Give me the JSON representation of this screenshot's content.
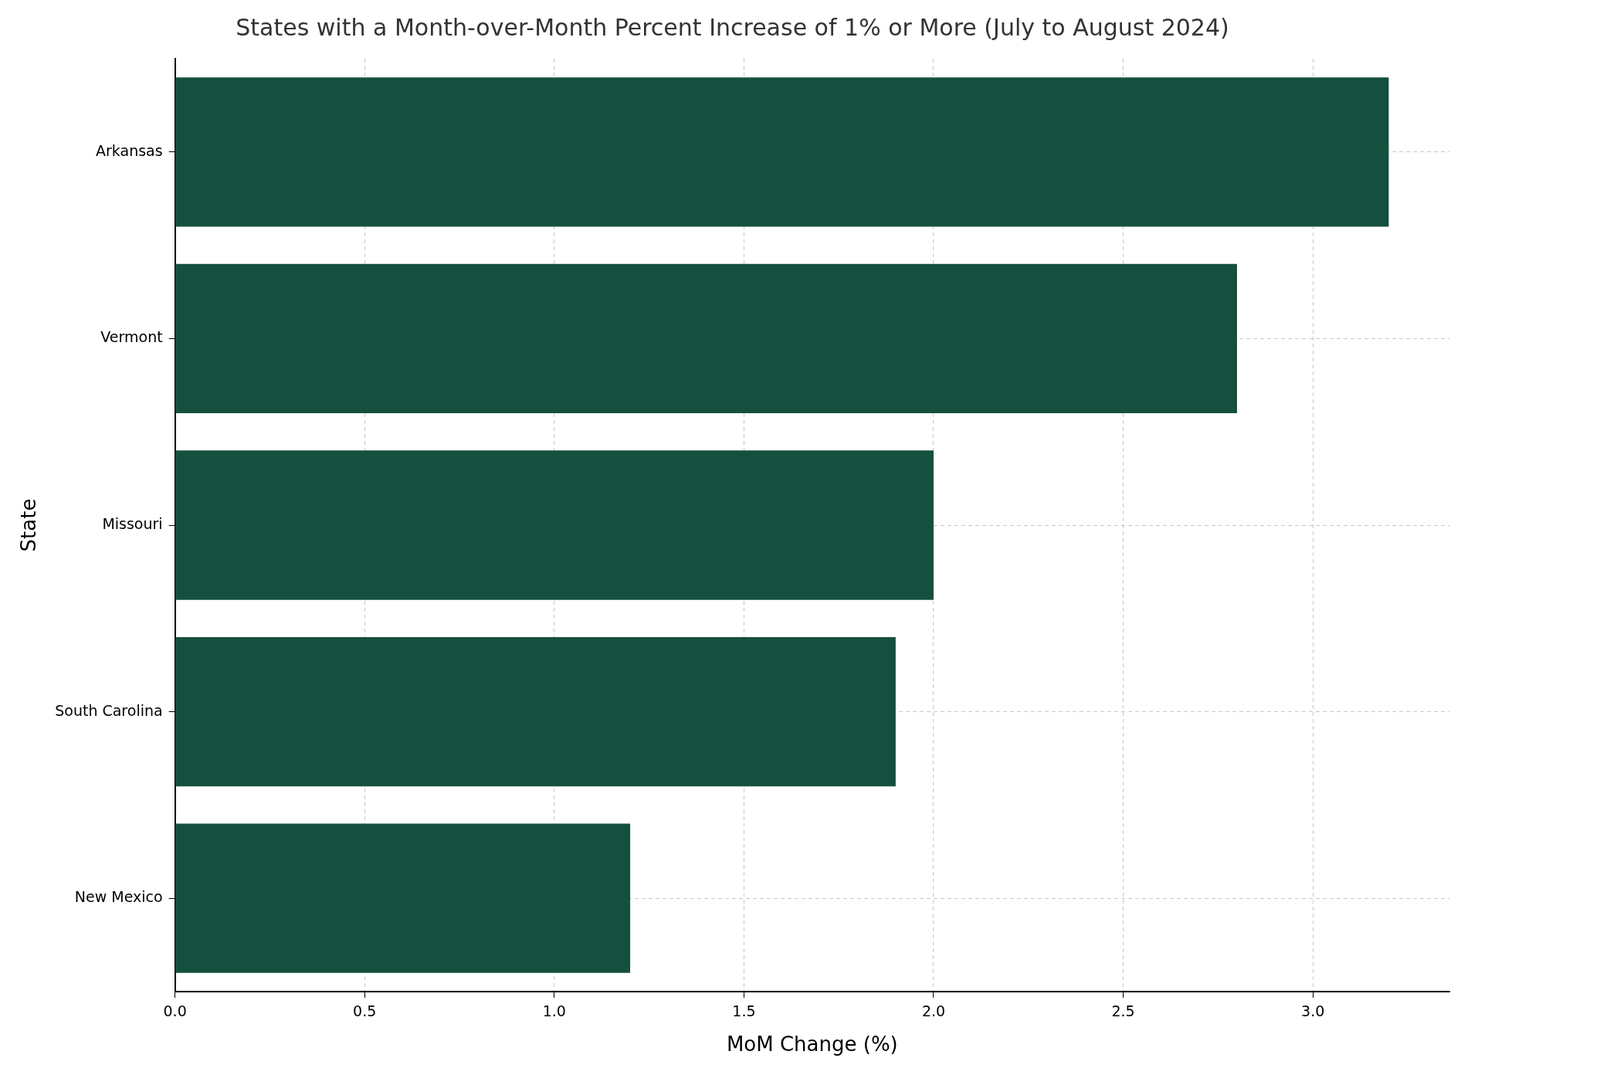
{
  "chart_data": {
    "type": "bar",
    "orientation": "horizontal",
    "title": "States with a Month-over-Month Percent Increase of 1% or More (July to August 2024)",
    "xlabel": "MoM Change (%)",
    "ylabel": "State",
    "categories": [
      "Arkansas",
      "Vermont",
      "Missouri",
      "South Carolina",
      "New Mexico"
    ],
    "values": [
      3.2,
      2.8,
      2.0,
      1.9,
      1.2
    ],
    "color": "#154f3e",
    "xlim": [
      0,
      3.36
    ],
    "xticks": [
      {
        "value": 0,
        "label": "0.0"
      },
      0.5,
      {
        "value": 1,
        "label": "1.0"
      },
      1.5,
      {
        "value": 2,
        "label": "2.0"
      },
      2.5,
      {
        "value": 3,
        "label": "3.0"
      }
    ],
    "grid": true
  }
}
